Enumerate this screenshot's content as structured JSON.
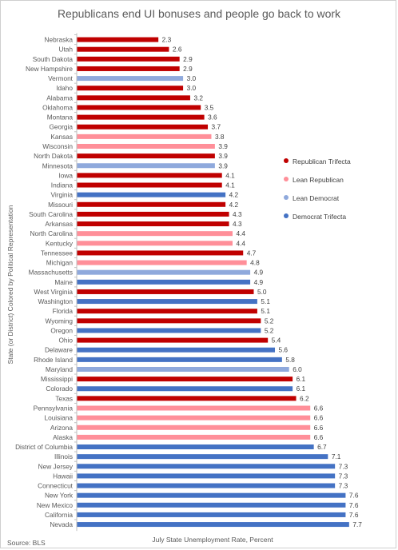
{
  "title": "Republicans end UI bonuses and people go back to work",
  "source": "Source: BLS",
  "chart_data": {
    "type": "bar",
    "orientation": "horizontal",
    "title": "Republicans end UI bonuses and people go back to work",
    "xlabel": "July State Unemployment Rate, Percent",
    "ylabel": "State (or District) Colored by Political Representation",
    "xlim": [
      0,
      8
    ],
    "grid": false,
    "legend_position": "right",
    "colors": {
      "Republican Trifecta": "#c00000",
      "Lean Republican": "#ff8f99",
      "Lean Democrat": "#8fa9dc",
      "Democrat Trifecta": "#4472c4"
    },
    "legend": [
      "Republican Trifecta",
      "Lean Republican",
      "Lean Democrat",
      "Democrat Trifecta"
    ],
    "categories": [
      "Nebraska",
      "Utah",
      "South Dakota",
      "New Hampshire",
      "Vermont",
      "Idaho",
      "Alabama",
      "Oklahoma",
      "Montana",
      "Georgia",
      "Kansas",
      "Wisconsin",
      "North Dakota",
      "Minnesota",
      "Iowa",
      "Indiana",
      "Virginia",
      "Missouri",
      "South Carolina",
      "Arkansas",
      "North Carolina",
      "Kentucky",
      "Tennessee",
      "Michigan",
      "Massachusetts",
      "Maine",
      "West Virginia",
      "Washington",
      "Florida",
      "Wyoming",
      "Oregon",
      "Ohio",
      "Delaware",
      "Rhode Island",
      "Maryland",
      "Mississippi",
      "Colorado",
      "Texas",
      "Pennsylvania",
      "Louisiana",
      "Arizona",
      "Alaska",
      "District of Columbia",
      "Illinois",
      "New Jersey",
      "Hawaii",
      "Connecticut",
      "New York",
      "New Mexico",
      "California",
      "Nevada"
    ],
    "values": [
      2.3,
      2.6,
      2.9,
      2.9,
      3.0,
      3.0,
      3.2,
      3.5,
      3.6,
      3.7,
      3.8,
      3.9,
      3.9,
      3.9,
      4.1,
      4.1,
      4.2,
      4.2,
      4.3,
      4.3,
      4.4,
      4.4,
      4.7,
      4.8,
      4.9,
      4.9,
      5.0,
      5.1,
      5.1,
      5.2,
      5.2,
      5.4,
      5.6,
      5.8,
      6.0,
      6.1,
      6.1,
      6.2,
      6.6,
      6.6,
      6.6,
      6.6,
      6.7,
      7.1,
      7.3,
      7.3,
      7.3,
      7.6,
      7.6,
      7.6,
      7.7
    ],
    "labels": [
      "2.3",
      "2.6",
      "2.9",
      "2.9",
      "3.0",
      "3.0",
      "3.2",
      "3.5",
      "3.6",
      "3.7",
      "3.8",
      "3.9",
      "3.9",
      "3.9",
      "4.1",
      "4.1",
      "4.2",
      "4.2",
      "4.3",
      "4.3",
      "4.4",
      "4.4",
      "4.7",
      "4.8",
      "4.9",
      "4.9",
      "5.0",
      "5.1",
      "5.1",
      "5.2",
      "5.2",
      "5.4",
      "5.6",
      "5.8",
      "6.0",
      "6.1",
      "6.1",
      "6.2",
      "6.6",
      "6.6",
      "6.6",
      "6.6",
      "6.7",
      "7.1",
      "7.3",
      "7.3",
      "7.3",
      "7.6",
      "7.6",
      "7.6",
      "7.7"
    ],
    "groups": [
      "Republican Trifecta",
      "Republican Trifecta",
      "Republican Trifecta",
      "Republican Trifecta",
      "Lean Democrat",
      "Republican Trifecta",
      "Republican Trifecta",
      "Republican Trifecta",
      "Republican Trifecta",
      "Republican Trifecta",
      "Lean Republican",
      "Lean Republican",
      "Republican Trifecta",
      "Lean Democrat",
      "Republican Trifecta",
      "Republican Trifecta",
      "Democrat Trifecta",
      "Republican Trifecta",
      "Republican Trifecta",
      "Republican Trifecta",
      "Lean Republican",
      "Lean Republican",
      "Republican Trifecta",
      "Lean Republican",
      "Lean Democrat",
      "Democrat Trifecta",
      "Republican Trifecta",
      "Democrat Trifecta",
      "Republican Trifecta",
      "Republican Trifecta",
      "Democrat Trifecta",
      "Republican Trifecta",
      "Democrat Trifecta",
      "Democrat Trifecta",
      "Lean Democrat",
      "Republican Trifecta",
      "Democrat Trifecta",
      "Republican Trifecta",
      "Lean Republican",
      "Lean Republican",
      "Lean Republican",
      "Lean Republican",
      "Democrat Trifecta",
      "Democrat Trifecta",
      "Democrat Trifecta",
      "Democrat Trifecta",
      "Democrat Trifecta",
      "Democrat Trifecta",
      "Democrat Trifecta",
      "Democrat Trifecta",
      "Democrat Trifecta"
    ]
  }
}
